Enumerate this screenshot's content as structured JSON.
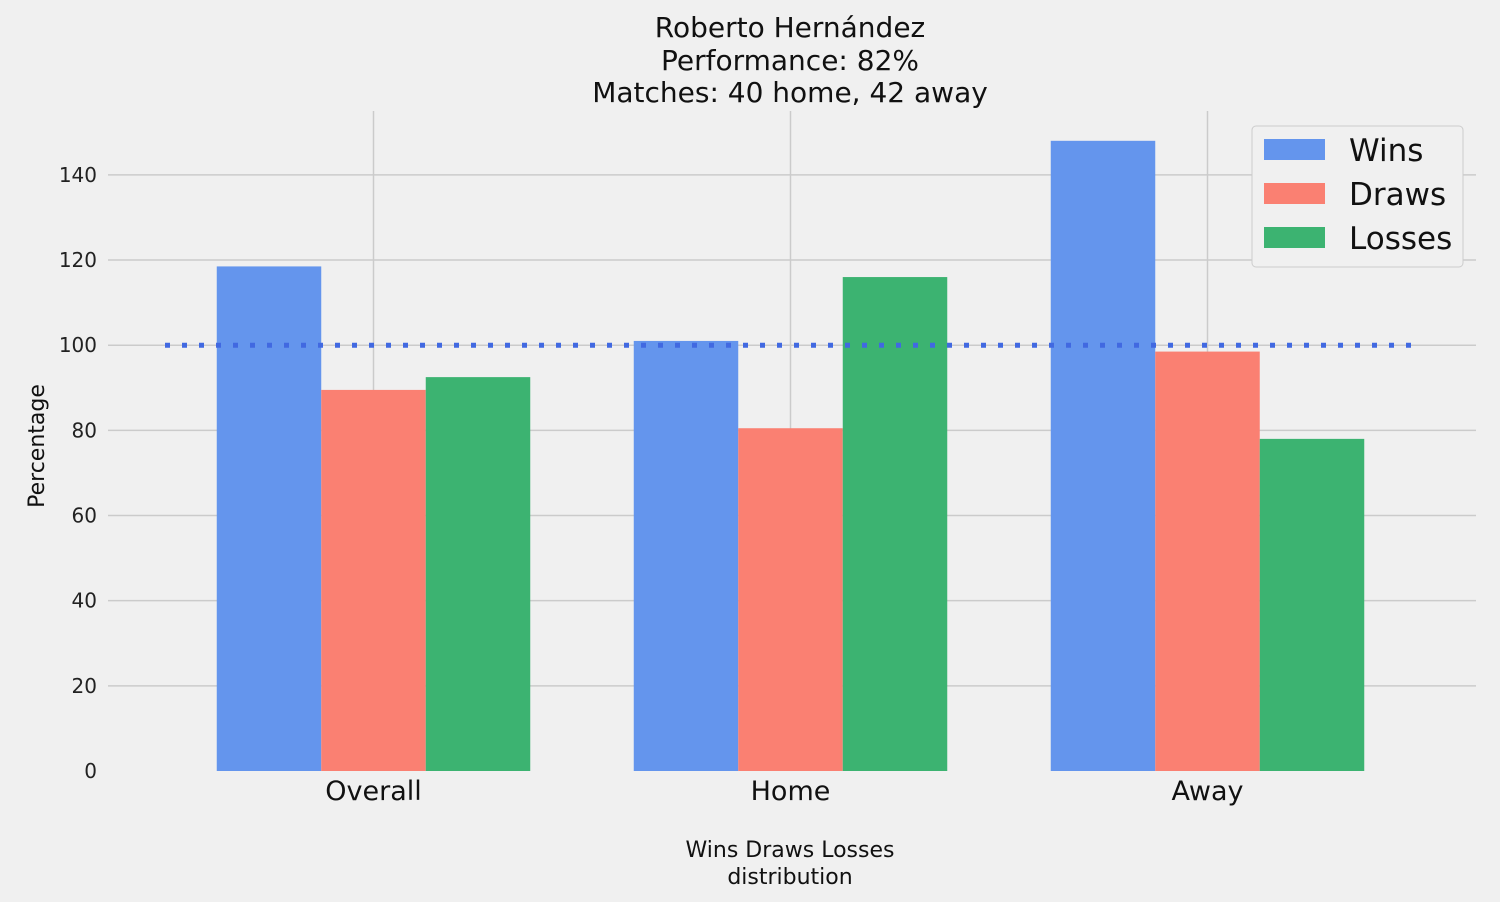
{
  "chart_data": {
    "type": "bar",
    "title_lines": [
      "Roberto Hernández",
      "Performance: 82%",
      "Matches: 40 home, 42 away"
    ],
    "xlabel_lines": [
      "Wins Draws Losses",
      "distribution"
    ],
    "ylabel": "Percentage",
    "categories": [
      "Overall",
      "Home",
      "Away"
    ],
    "series": [
      {
        "name": "Wins",
        "color": "#6495ed",
        "values": [
          118.5,
          101,
          148
        ]
      },
      {
        "name": "Draws",
        "color": "#fa8072",
        "values": [
          89.5,
          80.5,
          98.5
        ]
      },
      {
        "name": "Losses",
        "color": "#3cb371",
        "values": [
          92.5,
          116,
          78
        ]
      }
    ],
    "reference_line": {
      "value": 100,
      "color": "#4169e1",
      "style": "dotted"
    },
    "ylim": [
      0,
      155
    ],
    "yticks": [
      0,
      20,
      40,
      60,
      80,
      100,
      120,
      140
    ],
    "grid": true,
    "legend_position": "top-right"
  }
}
